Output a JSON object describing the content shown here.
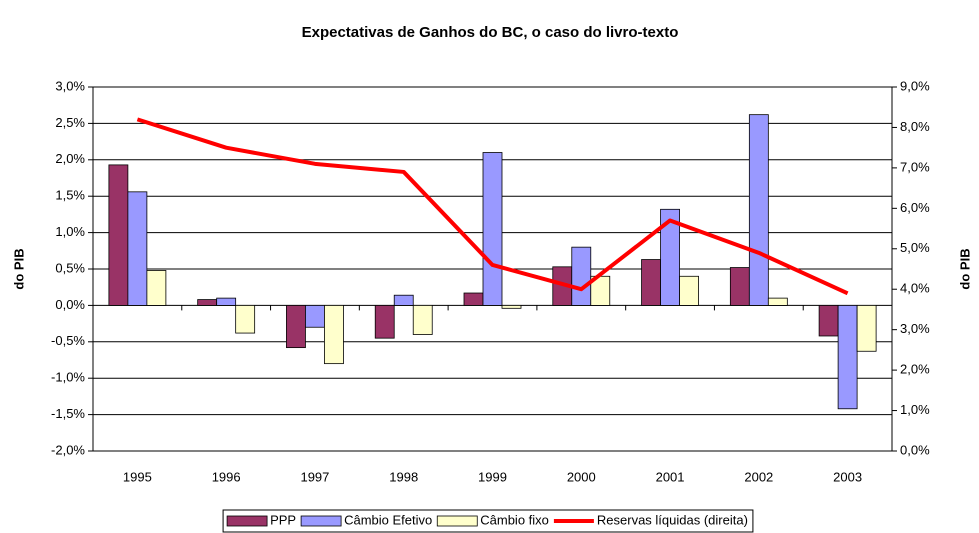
{
  "chart_data": {
    "type": "bar_line",
    "title": "Expectativas de Ganhos do BC, o caso do livro-texto",
    "y_label": "do PIB",
    "y2_label": "do PIB",
    "categories": [
      "1995",
      "1996",
      "1997",
      "1998",
      "1999",
      "2000",
      "2001",
      "2002",
      "2003"
    ],
    "series": [
      {
        "name": "PPP",
        "color": "#993366",
        "type": "bar",
        "values": [
          1.93,
          0.08,
          -0.58,
          -0.45,
          0.17,
          0.53,
          0.63,
          0.52,
          -0.42
        ]
      },
      {
        "name": "Câmbio Efetivo",
        "color": "#9999ff",
        "type": "bar",
        "values": [
          1.56,
          0.1,
          -0.3,
          0.14,
          2.1,
          0.8,
          1.32,
          2.62,
          -1.42
        ]
      },
      {
        "name": "Câmbio fixo",
        "color": "#ffffcc",
        "type": "bar",
        "values": [
          0.48,
          -0.38,
          -0.8,
          -0.4,
          -0.04,
          0.4,
          0.4,
          0.1,
          -0.63
        ]
      },
      {
        "name": "Reservas líquidas (direita)",
        "color": "#ff0000",
        "type": "line",
        "axis": "y2",
        "values": [
          8.2,
          7.5,
          7.1,
          6.9,
          4.6,
          4.0,
          5.7,
          4.9,
          3.9
        ]
      }
    ],
    "ylim": [
      -2.0,
      3.0
    ],
    "yticks": [
      {
        "value": -2.0,
        "label": "-2,0%"
      },
      {
        "value": -1.5,
        "label": "-1,5%"
      },
      {
        "value": -1.0,
        "label": "-1,0%"
      },
      {
        "value": -0.5,
        "label": "-0,5%"
      },
      {
        "value": 0.0,
        "label": "0,0%"
      },
      {
        "value": 0.5,
        "label": "0,5%"
      },
      {
        "value": 1.0,
        "label": "1,0%"
      },
      {
        "value": 1.5,
        "label": "1,5%"
      },
      {
        "value": 2.0,
        "label": "2,0%"
      },
      {
        "value": 2.5,
        "label": "2,5%"
      },
      {
        "value": 3.0,
        "label": "3,0%"
      }
    ],
    "y2lim": [
      0.0,
      9.0
    ],
    "y2ticks": [
      {
        "value": 0.0,
        "label": "0,0%"
      },
      {
        "value": 1.0,
        "label": "1,0%"
      },
      {
        "value": 2.0,
        "label": "2,0%"
      },
      {
        "value": 3.0,
        "label": "3,0%"
      },
      {
        "value": 4.0,
        "label": "4,0%"
      },
      {
        "value": 5.0,
        "label": "5,0%"
      },
      {
        "value": 6.0,
        "label": "6,0%"
      },
      {
        "value": 7.0,
        "label": "7,0%"
      },
      {
        "value": 8.0,
        "label": "8,0%"
      },
      {
        "value": 9.0,
        "label": "9,0%"
      }
    ],
    "grid": true,
    "legend": "bottom"
  }
}
